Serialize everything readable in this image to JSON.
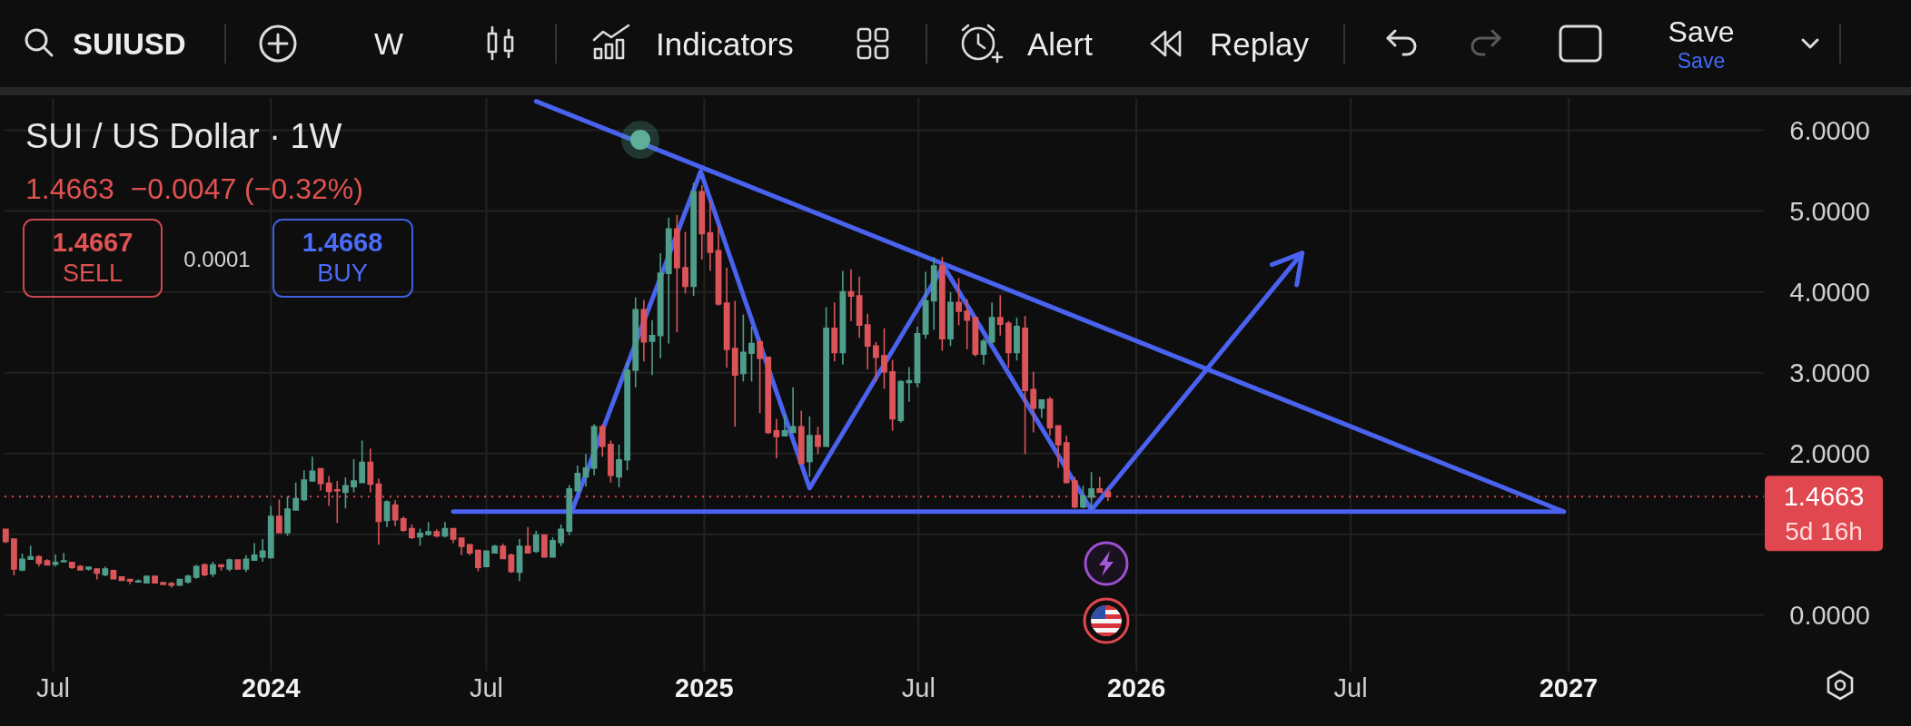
{
  "chart_data": {
    "type": "candlestick",
    "title": "SUI / US Dollar · 1W",
    "subtitle": "1.4663  −0.0047 (−0.32%)",
    "x": [
      "2023-05-22",
      "2023-05-29",
      "2023-06-05",
      "2023-06-12",
      "2023-06-19",
      "2023-06-26",
      "2023-07-03",
      "2023-07-10",
      "2023-07-17",
      "2023-07-24",
      "2023-07-31",
      "2023-08-07",
      "2023-08-14",
      "2023-08-21",
      "2023-08-28",
      "2023-09-04",
      "2023-09-11",
      "2023-09-18",
      "2023-09-25",
      "2023-10-02",
      "2023-10-09",
      "2023-10-16",
      "2023-10-23",
      "2023-10-30",
      "2023-11-06",
      "2023-11-13",
      "2023-11-20",
      "2023-11-27",
      "2023-12-04",
      "2023-12-11",
      "2023-12-18",
      "2023-12-25",
      "2024-01-01",
      "2024-01-08",
      "2024-01-15",
      "2024-01-22",
      "2024-01-29",
      "2024-02-05",
      "2024-02-12",
      "2024-02-19",
      "2024-02-26",
      "2024-03-04",
      "2024-03-11",
      "2024-03-18",
      "2024-03-25",
      "2024-04-01",
      "2024-04-08",
      "2024-04-15",
      "2024-04-22",
      "2024-04-29",
      "2024-05-06",
      "2024-05-13",
      "2024-05-20",
      "2024-05-27",
      "2024-06-03",
      "2024-06-10",
      "2024-06-17",
      "2024-06-24",
      "2024-07-01",
      "2024-07-08",
      "2024-07-15",
      "2024-07-22",
      "2024-07-29",
      "2024-08-05",
      "2024-08-12",
      "2024-08-19",
      "2024-08-26",
      "2024-09-02",
      "2024-09-09",
      "2024-09-16",
      "2024-09-23",
      "2024-09-30",
      "2024-10-07",
      "2024-10-14",
      "2024-10-21",
      "2024-10-28",
      "2024-11-04",
      "2024-11-11",
      "2024-11-18",
      "2024-11-25",
      "2024-12-02",
      "2024-12-09",
      "2024-12-16",
      "2024-12-23",
      "2024-12-30",
      "2025-01-06",
      "2025-01-13",
      "2025-01-20",
      "2025-01-27",
      "2025-02-03",
      "2025-02-10",
      "2025-02-17",
      "2025-02-24",
      "2025-03-03",
      "2025-03-10",
      "2025-03-17",
      "2025-03-24",
      "2025-03-31",
      "2025-04-07",
      "2025-04-14",
      "2025-04-21",
      "2025-04-28",
      "2025-05-05",
      "2025-05-12",
      "2025-05-19",
      "2025-05-26",
      "2025-06-02",
      "2025-06-09",
      "2025-06-16",
      "2025-06-23",
      "2025-06-30",
      "2025-07-07",
      "2025-07-14",
      "2025-07-21",
      "2025-07-28",
      "2025-08-04",
      "2025-08-11",
      "2025-08-18",
      "2025-08-25",
      "2025-09-01",
      "2025-09-08",
      "2025-09-15",
      "2025-09-22",
      "2025-09-29",
      "2025-10-06",
      "2025-10-13",
      "2025-10-20",
      "2025-10-27",
      "2025-11-03",
      "2025-11-10",
      "2025-11-17",
      "2025-11-24",
      "2025-12-01",
      "2025-12-08"
    ],
    "ohlc": [
      [
        1.06,
        1.07,
        0.89,
        0.91
      ],
      [
        0.94,
        0.95,
        0.49,
        0.57
      ],
      [
        0.56,
        0.76,
        0.54,
        0.69
      ],
      [
        0.69,
        0.86,
        0.69,
        0.72
      ],
      [
        0.72,
        0.74,
        0.6,
        0.64
      ],
      [
        0.67,
        0.69,
        0.62,
        0.62
      ],
      [
        0.63,
        0.75,
        0.6,
        0.65
      ],
      [
        0.66,
        0.77,
        0.65,
        0.67
      ],
      [
        0.65,
        0.66,
        0.57,
        0.59
      ],
      [
        0.6,
        0.62,
        0.55,
        0.56
      ],
      [
        0.57,
        0.6,
        0.55,
        0.59
      ],
      [
        0.57,
        0.58,
        0.44,
        0.52
      ],
      [
        0.5,
        0.6,
        0.48,
        0.57
      ],
      [
        0.55,
        0.56,
        0.44,
        0.45
      ],
      [
        0.47,
        0.48,
        0.42,
        0.43
      ],
      [
        0.44,
        0.44,
        0.38,
        0.42
      ],
      [
        0.41,
        0.44,
        0.4,
        0.42
      ],
      [
        0.4,
        0.48,
        0.39,
        0.48
      ],
      [
        0.48,
        0.48,
        0.39,
        0.4
      ],
      [
        0.4,
        0.41,
        0.38,
        0.38
      ],
      [
        0.39,
        0.41,
        0.34,
        0.37
      ],
      [
        0.37,
        0.45,
        0.36,
        0.44
      ],
      [
        0.41,
        0.5,
        0.39,
        0.48
      ],
      [
        0.47,
        0.62,
        0.45,
        0.6
      ],
      [
        0.62,
        0.64,
        0.48,
        0.5
      ],
      [
        0.51,
        0.66,
        0.47,
        0.62
      ],
      [
        0.62,
        0.62,
        0.55,
        0.6
      ],
      [
        0.57,
        0.7,
        0.54,
        0.68
      ],
      [
        0.68,
        0.69,
        0.57,
        0.57
      ],
      [
        0.57,
        0.74,
        0.53,
        0.69
      ],
      [
        0.68,
        0.89,
        0.67,
        0.74
      ],
      [
        0.72,
        0.94,
        0.66,
        0.79
      ],
      [
        0.71,
        1.35,
        0.7,
        1.22
      ],
      [
        1.22,
        1.43,
        1.01,
        1.02
      ],
      [
        1.02,
        1.47,
        0.98,
        1.31
      ],
      [
        1.3,
        1.64,
        1.29,
        1.44
      ],
      [
        1.43,
        1.79,
        1.41,
        1.67
      ],
      [
        1.66,
        1.96,
        1.66,
        1.78
      ],
      [
        1.81,
        1.82,
        1.54,
        1.63
      ],
      [
        1.63,
        1.72,
        1.35,
        1.53
      ],
      [
        1.55,
        1.66,
        1.14,
        1.54
      ],
      [
        1.52,
        1.7,
        1.32,
        1.6
      ],
      [
        1.59,
        1.93,
        1.52,
        1.66
      ],
      [
        1.64,
        2.16,
        1.63,
        1.89
      ],
      [
        1.89,
        2.06,
        1.52,
        1.62
      ],
      [
        1.62,
        1.69,
        0.87,
        1.16
      ],
      [
        1.17,
        1.42,
        1.09,
        1.4
      ],
      [
        1.36,
        1.42,
        1.1,
        1.18
      ],
      [
        1.19,
        1.22,
        1.03,
        1.05
      ],
      [
        1.07,
        1.12,
        0.94,
        0.96
      ],
      [
        0.97,
        1.07,
        0.86,
        1.01
      ],
      [
        1.0,
        1.15,
        0.98,
        1.03
      ],
      [
        1.03,
        1.06,
        0.96,
        0.98
      ],
      [
        0.98,
        1.15,
        0.96,
        1.07
      ],
      [
        1.07,
        1.07,
        0.89,
        0.94
      ],
      [
        0.95,
        0.96,
        0.74,
        0.85
      ],
      [
        0.87,
        0.88,
        0.74,
        0.77
      ],
      [
        0.8,
        0.81,
        0.54,
        0.59
      ],
      [
        0.6,
        0.79,
        0.59,
        0.79
      ],
      [
        0.77,
        0.87,
        0.76,
        0.85
      ],
      [
        0.85,
        0.88,
        0.69,
        0.7
      ],
      [
        0.74,
        0.76,
        0.52,
        0.54
      ],
      [
        0.53,
        0.94,
        0.42,
        0.85
      ],
      [
        0.85,
        1.09,
        0.76,
        0.77
      ],
      [
        0.79,
        1.04,
        0.77,
        0.99
      ],
      [
        0.99,
        0.99,
        0.71,
        0.72
      ],
      [
        0.72,
        0.96,
        0.71,
        0.92
      ],
      [
        0.9,
        1.12,
        0.85,
        1.06
      ],
      [
        1.04,
        1.61,
        0.99,
        1.56
      ],
      [
        1.54,
        1.85,
        1.51,
        1.75
      ],
      [
        1.71,
        1.99,
        1.59,
        1.82
      ],
      [
        1.82,
        2.36,
        1.73,
        2.33
      ],
      [
        2.33,
        2.36,
        1.96,
        2.09
      ],
      [
        2.11,
        2.16,
        1.64,
        1.73
      ],
      [
        1.71,
        2.11,
        1.58,
        1.92
      ],
      [
        1.92,
        3.14,
        1.79,
        3.03
      ],
      [
        3.03,
        3.93,
        2.82,
        3.78
      ],
      [
        3.78,
        3.9,
        3.14,
        3.38
      ],
      [
        3.39,
        3.65,
        2.97,
        3.46
      ],
      [
        3.46,
        4.48,
        3.18,
        4.23
      ],
      [
        4.23,
        4.92,
        3.36,
        4.78
      ],
      [
        4.78,
        4.95,
        3.5,
        4.3
      ],
      [
        4.3,
        4.74,
        3.98,
        4.07
      ],
      [
        4.07,
        5.35,
        3.95,
        5.24
      ],
      [
        5.24,
        5.32,
        4.4,
        4.72
      ],
      [
        4.73,
        5.13,
        4.26,
        4.49
      ],
      [
        4.51,
        4.81,
        3.83,
        3.85
      ],
      [
        3.86,
        4.3,
        3.06,
        3.29
      ],
      [
        3.3,
        3.89,
        2.33,
        2.97
      ],
      [
        2.99,
        3.72,
        2.89,
        3.25
      ],
      [
        3.24,
        3.57,
        2.89,
        3.36
      ],
      [
        3.38,
        3.42,
        2.5,
        3.18
      ],
      [
        3.19,
        3.19,
        2.24,
        2.26
      ],
      [
        2.28,
        2.43,
        1.94,
        2.21
      ],
      [
        2.22,
        2.48,
        2.22,
        2.28
      ],
      [
        2.26,
        2.82,
        2.26,
        2.33
      ],
      [
        2.33,
        2.53,
        1.86,
        1.88
      ],
      [
        1.9,
        2.46,
        1.71,
        2.22
      ],
      [
        2.22,
        2.33,
        1.99,
        2.09
      ],
      [
        2.09,
        3.81,
        2.08,
        3.55
      ],
      [
        3.55,
        3.87,
        3.14,
        3.25
      ],
      [
        3.25,
        4.26,
        3.1,
        4.0
      ],
      [
        4.0,
        4.28,
        3.64,
        3.95
      ],
      [
        3.95,
        4.19,
        3.43,
        3.59
      ],
      [
        3.59,
        3.73,
        3.04,
        3.33
      ],
      [
        3.33,
        3.38,
        2.89,
        3.19
      ],
      [
        3.21,
        3.55,
        2.8,
        3.01
      ],
      [
        3.01,
        3.16,
        2.28,
        2.43
      ],
      [
        2.41,
        2.91,
        2.38,
        2.89
      ],
      [
        2.88,
        3.07,
        2.64,
        2.9
      ],
      [
        2.88,
        3.57,
        2.82,
        3.48
      ],
      [
        3.48,
        4.25,
        3.42,
        3.89
      ],
      [
        3.89,
        4.43,
        3.53,
        4.32
      ],
      [
        4.32,
        4.43,
        3.27,
        3.42
      ],
      [
        3.42,
        4.0,
        3.33,
        3.87
      ],
      [
        3.87,
        4.17,
        3.59,
        3.76
      ],
      [
        3.76,
        3.91,
        3.29,
        3.65
      ],
      [
        3.68,
        3.69,
        3.2,
        3.23
      ],
      [
        3.23,
        3.42,
        3.1,
        3.39
      ],
      [
        3.38,
        3.87,
        3.35,
        3.68
      ],
      [
        3.68,
        3.96,
        3.46,
        3.6
      ],
      [
        3.61,
        3.64,
        3.06,
        3.25
      ],
      [
        3.25,
        3.68,
        3.15,
        3.57
      ],
      [
        3.55,
        3.7,
        1.99,
        2.78
      ],
      [
        2.79,
        3.01,
        2.26,
        2.56
      ],
      [
        2.56,
        2.67,
        2.44,
        2.66
      ],
      [
        2.67,
        2.7,
        2.22,
        2.32
      ],
      [
        2.34,
        2.35,
        1.82,
        2.11
      ],
      [
        2.13,
        2.22,
        1.63,
        1.64
      ],
      [
        1.66,
        1.71,
        1.32,
        1.34
      ],
      [
        1.34,
        1.6,
        1.32,
        1.47
      ],
      [
        1.46,
        1.77,
        1.32,
        1.56
      ],
      [
        1.56,
        1.71,
        1.51,
        1.52
      ],
      [
        1.52,
        1.57,
        1.41,
        1.4663
      ]
    ],
    "colors": [
      "#db5459",
      "#db5459",
      "#4f9d8a",
      "#4f9d8a",
      "#db5459",
      "#db5459",
      "#4f9d8a",
      "#4f9d8a",
      "#db5459",
      "#db5459",
      "#4f9d8a",
      "#db5459",
      "#4f9d8a",
      "#db5459",
      "#db5459",
      "#db5459",
      "#4f9d8a",
      "#4f9d8a",
      "#db5459",
      "#db5459",
      "#db5459",
      "#4f9d8a",
      "#4f9d8a",
      "#4f9d8a",
      "#db5459",
      "#4f9d8a",
      "#db5459",
      "#4f9d8a",
      "#db5459",
      "#4f9d8a",
      "#4f9d8a",
      "#4f9d8a",
      "#4f9d8a",
      "#db5459",
      "#4f9d8a",
      "#4f9d8a",
      "#4f9d8a",
      "#4f9d8a",
      "#db5459",
      "#db5459",
      "#db5459",
      "#4f9d8a",
      "#4f9d8a",
      "#4f9d8a",
      "#db5459",
      "#db5459",
      "#4f9d8a",
      "#db5459",
      "#db5459",
      "#db5459",
      "#4f9d8a",
      "#4f9d8a",
      "#db5459",
      "#4f9d8a",
      "#db5459",
      "#db5459",
      "#db5459",
      "#db5459",
      "#4f9d8a",
      "#4f9d8a",
      "#db5459",
      "#db5459",
      "#4f9d8a",
      "#db5459",
      "#4f9d8a",
      "#db5459",
      "#4f9d8a",
      "#4f9d8a",
      "#4f9d8a",
      "#4f9d8a",
      "#4f9d8a",
      "#4f9d8a",
      "#db5459",
      "#db5459",
      "#4f9d8a",
      "#4f9d8a",
      "#4f9d8a",
      "#db5459",
      "#4f9d8a",
      "#4f9d8a",
      "#4f9d8a",
      "#db5459",
      "#db5459",
      "#4f9d8a",
      "#db5459",
      "#db5459",
      "#db5459",
      "#db5459",
      "#db5459",
      "#4f9d8a",
      "#4f9d8a",
      "#db5459",
      "#db5459",
      "#db5459",
      "#4f9d8a",
      "#4f9d8a",
      "#db5459",
      "#4f9d8a",
      "#db5459",
      "#4f9d8a",
      "#db5459",
      "#4f9d8a",
      "#db5459",
      "#db5459",
      "#db5459",
      "#db5459",
      "#db5459",
      "#db5459",
      "#4f9d8a",
      "#4f9d8a",
      "#4f9d8a",
      "#4f9d8a",
      "#4f9d8a",
      "#db5459",
      "#4f9d8a",
      "#db5459",
      "#db5459",
      "#db5459",
      "#4f9d8a",
      "#4f9d8a",
      "#db5459",
      "#db5459",
      "#4f9d8a",
      "#db5459",
      "#db5459",
      "#4f9d8a",
      "#db5459",
      "#db5459",
      "#db5459",
      "#db5459",
      "#4f9d8a",
      "#4f9d8a",
      "#db5459",
      "#db5459"
    ],
    "series": [
      {
        "type": "line",
        "x": [
          "2024-08-12",
          "2026-12-28"
        ],
        "values": [
          6.36,
          1.28
        ],
        "color": "#4a62f0"
      },
      {
        "type": "line",
        "x": [
          "2024-06-03",
          "2026-12-28"
        ],
        "values": [
          1.28,
          1.28
        ],
        "color": "#4a62f0"
      },
      {
        "type": "line",
        "x": [
          "2024-09-11",
          "2024-12-29",
          "2025-03-31",
          "2025-07-22",
          "2025-11-24",
          "2026-05-21"
        ],
        "values": [
          1.28,
          5.49,
          1.57,
          4.32,
          1.3,
          4.48
        ],
        "color": "#4a62f0"
      }
    ],
    "xlim": [
      "2023-05-21",
      "2027-06-15"
    ],
    "ylim": [
      -0.7,
      6.4
    ],
    "xticks": [
      {
        "value": "2023-07-01",
        "label": "Jul"
      },
      {
        "value": "2024-01-01",
        "label": "2024"
      },
      {
        "value": "2024-07-01",
        "label": "Jul"
      },
      {
        "value": "2025-01-01",
        "label": "2025"
      },
      {
        "value": "2025-07-01",
        "label": "Jul"
      },
      {
        "value": "2026-01-01",
        "label": "2026"
      },
      {
        "value": "2026-07-01",
        "label": "Jul"
      },
      {
        "value": "2027-01-01",
        "label": "2027"
      }
    ],
    "yticks": [
      {
        "value": 0,
        "label": "0.0000"
      },
      {
        "value": 1,
        "label": null
      },
      {
        "value": 2,
        "label": "2.0000"
      },
      {
        "value": 3,
        "label": "3.0000"
      },
      {
        "value": 4,
        "label": "4.0000"
      },
      {
        "value": 5,
        "label": "5.0000"
      },
      {
        "value": 6,
        "label": "6.0000"
      }
    ],
    "grid": true,
    "ref_lines": [
      {
        "axis": "y",
        "value": 1.4663,
        "label": "1.4663",
        "color": "#e0474f",
        "line_style": "dotted"
      }
    ],
    "annotations": [
      "SUIUSD",
      "W",
      "Indicators",
      "Alert",
      "Replay",
      "Save",
      "Save",
      "1.4667",
      "SELL",
      "0.0001",
      "1.4668",
      "BUY",
      "5d 16h"
    ]
  }
}
